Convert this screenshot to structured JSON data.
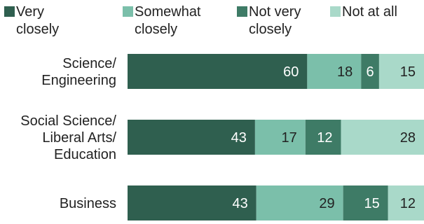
{
  "chart_data": {
    "type": "bar",
    "orientation": "horizontal",
    "stacked": true,
    "categories": [
      "Science/\nEngineering",
      "Social Science/\nLiberal Arts/\nEducation",
      "Business"
    ],
    "series": [
      {
        "name": "Very\nclosely",
        "values": [
          60,
          43,
          43
        ],
        "color": "#2f5f4f",
        "label_color": "#ffffff"
      },
      {
        "name": "Somewhat\nclosely",
        "values": [
          18,
          17,
          29
        ],
        "color": "#7bbfaa",
        "label_color": "#222222"
      },
      {
        "name": "Not very\nclosely",
        "values": [
          6,
          12,
          15
        ],
        "color": "#3e7b66",
        "label_color": "#ffffff"
      },
      {
        "name": "Not at all",
        "values": [
          15,
          28,
          12
        ],
        "color": "#a9d9c9",
        "label_color": "#222222"
      }
    ],
    "title": "",
    "xlabel": "",
    "ylabel": "",
    "legend_position": "top",
    "grid": false
  }
}
